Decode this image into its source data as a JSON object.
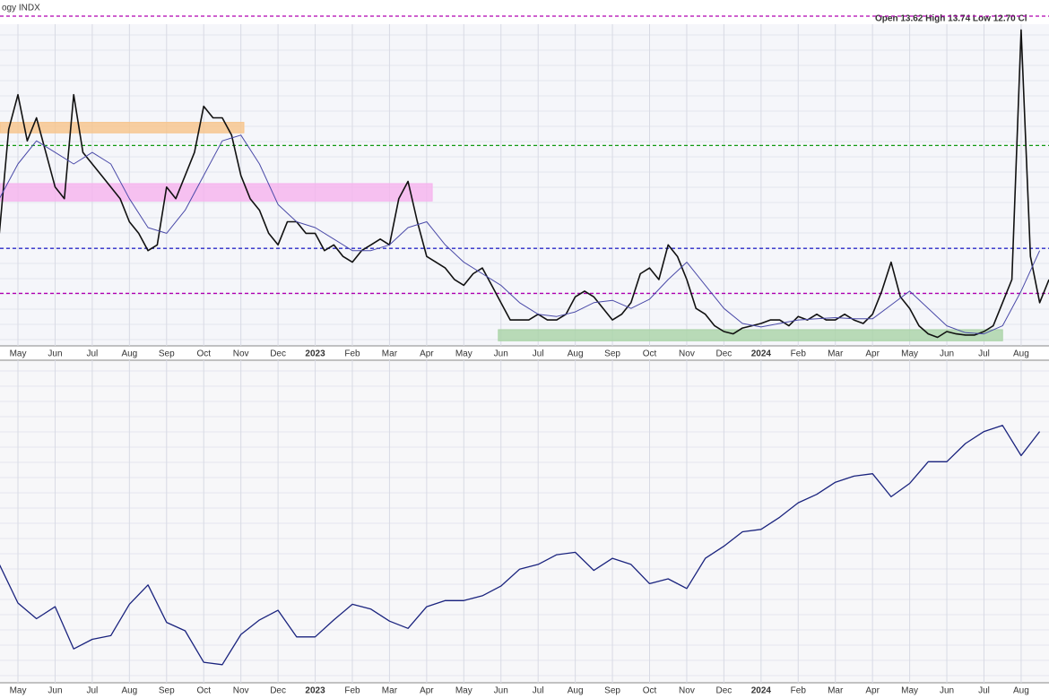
{
  "chart_data": [
    {
      "type": "line",
      "title": "ogy INDX",
      "quote": "Open 13.62 High 13.74 Low 12.70 Cl",
      "xlim": [
        -0.483,
        27.75
      ],
      "ylim": [
        11.26,
        39.1
      ],
      "xticks": [
        {
          "value": 0,
          "label": "May"
        },
        {
          "value": 1,
          "label": "Jun"
        },
        {
          "value": 2,
          "label": "Jul"
        },
        {
          "value": 3,
          "label": "Aug"
        },
        {
          "value": 4,
          "label": "Sep"
        },
        {
          "value": 5,
          "label": "Oct"
        },
        {
          "value": 6,
          "label": "Nov"
        },
        {
          "value": 7,
          "label": "Dec"
        },
        {
          "value": 8,
          "label": "2023"
        },
        {
          "value": 9,
          "label": "Feb"
        },
        {
          "value": 10,
          "label": "Mar"
        },
        {
          "value": 11,
          "label": "Apr"
        },
        {
          "value": 12,
          "label": "May"
        },
        {
          "value": 13,
          "label": "Jun"
        },
        {
          "value": 14,
          "label": "Jul"
        },
        {
          "value": 15,
          "label": "Aug"
        },
        {
          "value": 16,
          "label": "Sep"
        },
        {
          "value": 17,
          "label": "Oct"
        },
        {
          "value": 18,
          "label": "Nov"
        },
        {
          "value": 19,
          "label": "Dec"
        },
        {
          "value": 20,
          "label": "2024"
        },
        {
          "value": 21,
          "label": "Feb"
        },
        {
          "value": 22,
          "label": "Mar"
        },
        {
          "value": 23,
          "label": "Apr"
        },
        {
          "value": 24,
          "label": "May"
        },
        {
          "value": 25,
          "label": "Jun"
        },
        {
          "value": 26,
          "label": "Jul"
        },
        {
          "value": 27,
          "label": "Aug"
        }
      ],
      "grid": true,
      "reference_lines": [
        {
          "value": 39.8,
          "color": "#b000b0"
        },
        {
          "value": 28.6,
          "color": "#119911"
        },
        {
          "value": 19.7,
          "color": "#2a2ac8"
        },
        {
          "value": 15.8,
          "color": "#b000b0"
        }
      ],
      "zones": [
        {
          "x": [
            -0.483,
            6.08
          ],
          "y": [
            29.7,
            30.6
          ],
          "color": "#f7c48a"
        },
        {
          "x": [
            -0.483,
            11.15
          ],
          "y": [
            23.8,
            25.3
          ],
          "color": "#f6b3ee"
        },
        {
          "x": [
            12.93,
            26.5
          ],
          "y": [
            11.7,
            12.66
          ],
          "color": "#a9d3a6"
        }
      ],
      "series": [
        {
          "color": "#111111",
          "width": 1.6,
          "x": [
            -0.5,
            -0.25,
            0,
            0.25,
            0.5,
            0.75,
            1,
            1.25,
            1.5,
            1.75,
            2,
            2.25,
            2.5,
            2.75,
            3,
            3.25,
            3.5,
            3.75,
            4,
            4.25,
            4.5,
            4.75,
            5,
            5.25,
            5.5,
            5.75,
            6,
            6.25,
            6.5,
            6.75,
            7,
            7.25,
            7.5,
            7.75,
            8,
            8.25,
            8.5,
            8.75,
            9,
            9.25,
            9.5,
            9.75,
            10,
            10.25,
            10.5,
            10.75,
            11,
            11.25,
            11.5,
            11.75,
            12,
            12.25,
            12.5,
            12.75,
            13,
            13.25,
            13.5,
            13.75,
            14,
            14.25,
            14.5,
            14.75,
            15,
            15.25,
            15.5,
            15.75,
            16,
            16.25,
            16.5,
            16.75,
            17,
            17.25,
            17.5,
            17.75,
            18,
            18.25,
            18.5,
            18.75,
            19,
            19.25,
            19.5,
            19.75,
            20,
            20.25,
            20.5,
            20.75,
            21,
            21.25,
            21.5,
            21.75,
            22,
            22.25,
            22.5,
            22.75,
            23,
            23.25,
            23.5,
            23.75,
            24,
            24.25,
            24.5,
            24.75,
            25,
            25.25,
            25.5,
            25.75,
            26,
            26.25,
            26.5,
            26.75,
            27,
            27.25,
            27.5,
            27.75
          ],
          "values": [
            21,
            30,
            33,
            29,
            31,
            28,
            25,
            24,
            33,
            28,
            27,
            26,
            25,
            24,
            22,
            21,
            19.5,
            20,
            25,
            24,
            26,
            28,
            32,
            31,
            31,
            29.5,
            26,
            24,
            23,
            21,
            20,
            22,
            22,
            21,
            21,
            19.5,
            20,
            19,
            18.5,
            19.5,
            20,
            20.5,
            20,
            24,
            25.5,
            22,
            19,
            18.5,
            18,
            17,
            16.5,
            17.5,
            18,
            16.5,
            15,
            13.5,
            13.5,
            13.5,
            14,
            13.5,
            13.5,
            14,
            15.5,
            16,
            15.5,
            14.5,
            13.5,
            14,
            15,
            17.5,
            18,
            17,
            20,
            19,
            17,
            14.5,
            14,
            13,
            12.5,
            12.3,
            12.8,
            13,
            13.2,
            13.5,
            13.5,
            13,
            13.8,
            13.5,
            14,
            13.5,
            13.5,
            14,
            13.5,
            13.2,
            14,
            16,
            18.5,
            15.5,
            14.5,
            13,
            12.3,
            12,
            12.5,
            12.3,
            12.2,
            12.2,
            12.5,
            13,
            15,
            17,
            38.6,
            19,
            15,
            17
          ]
        },
        {
          "color": "#4a4aa8",
          "width": 1,
          "x": [
            -0.5,
            0,
            0.5,
            1,
            1.5,
            2,
            2.5,
            3,
            3.5,
            4,
            4.5,
            5,
            5.5,
            6,
            6.5,
            7,
            7.5,
            8,
            8.5,
            9,
            9.5,
            10,
            10.5,
            11,
            11.5,
            12,
            12.5,
            13,
            13.5,
            14,
            14.5,
            15,
            15.5,
            16,
            16.5,
            17,
            17.5,
            18,
            18.5,
            19,
            19.5,
            20,
            20.5,
            21,
            21.5,
            22,
            22.5,
            23,
            23.5,
            24,
            24.5,
            25,
            25.5,
            26,
            26.5,
            27,
            27.5
          ],
          "values": [
            24,
            27,
            29,
            28,
            27,
            28,
            27,
            24,
            21.5,
            21,
            23,
            26,
            29,
            29.5,
            27,
            23.5,
            22,
            21.5,
            20.5,
            19.5,
            19.5,
            20,
            21.5,
            22,
            20,
            18.5,
            17.5,
            16.5,
            15,
            14,
            13.8,
            14.2,
            15,
            15.2,
            14.5,
            15.3,
            17,
            18.5,
            16.5,
            14.5,
            13.2,
            12.9,
            13.2,
            13.5,
            13.6,
            13.7,
            13.6,
            13.6,
            14.8,
            16,
            14.5,
            13,
            12.4,
            12.3,
            13,
            16,
            19.5
          ]
        }
      ]
    },
    {
      "type": "line",
      "xlim": [
        -0.483,
        27.75
      ],
      "ylim": [
        3470,
        6140
      ],
      "xticks": [
        {
          "value": 0,
          "label": "May"
        },
        {
          "value": 1,
          "label": "Jun"
        },
        {
          "value": 2,
          "label": "Jul"
        },
        {
          "value": 3,
          "label": "Aug"
        },
        {
          "value": 4,
          "label": "Sep"
        },
        {
          "value": 5,
          "label": "Oct"
        },
        {
          "value": 6,
          "label": "Nov"
        },
        {
          "value": 7,
          "label": "Dec"
        },
        {
          "value": 8,
          "label": "2023"
        },
        {
          "value": 9,
          "label": "Feb"
        },
        {
          "value": 10,
          "label": "Mar"
        },
        {
          "value": 11,
          "label": "Apr"
        },
        {
          "value": 12,
          "label": "May"
        },
        {
          "value": 13,
          "label": "Jun"
        },
        {
          "value": 14,
          "label": "Jul"
        },
        {
          "value": 15,
          "label": "Aug"
        },
        {
          "value": 16,
          "label": "Sep"
        },
        {
          "value": 17,
          "label": "Oct"
        },
        {
          "value": 18,
          "label": "Nov"
        },
        {
          "value": 19,
          "label": "Dec"
        },
        {
          "value": 20,
          "label": "2024"
        },
        {
          "value": 21,
          "label": "Feb"
        },
        {
          "value": 22,
          "label": "Mar"
        },
        {
          "value": 23,
          "label": "Apr"
        },
        {
          "value": 24,
          "label": "May"
        },
        {
          "value": 25,
          "label": "Jun"
        },
        {
          "value": 26,
          "label": "Jul"
        },
        {
          "value": 27,
          "label": "Aug"
        }
      ],
      "grid": true,
      "series": [
        {
          "color": "#1a237e",
          "width": 1.3,
          "x": [
            -0.5,
            0,
            0.5,
            1,
            1.5,
            2,
            2.5,
            3,
            3.5,
            4,
            4.5,
            5,
            5.5,
            6,
            6.5,
            7,
            7.5,
            8,
            8.5,
            9,
            9.5,
            10,
            10.5,
            11,
            11.5,
            12,
            12.5,
            13,
            13.5,
            14,
            14.5,
            15,
            15.5,
            16,
            16.5,
            17,
            17.5,
            18,
            18.5,
            19,
            19.5,
            20,
            20.5,
            21,
            21.5,
            22,
            22.5,
            23,
            23.5,
            24,
            24.5,
            25,
            25.5,
            26,
            26.5,
            27,
            27.5
          ],
          "values": [
            4450,
            4130,
            4000,
            4100,
            3750,
            3830,
            3860,
            4120,
            4280,
            3970,
            3900,
            3640,
            3620,
            3870,
            3990,
            4070,
            3850,
            3850,
            3990,
            4120,
            4080,
            3980,
            3920,
            4100,
            4150,
            4150,
            4190,
            4270,
            4410,
            4450,
            4530,
            4550,
            4400,
            4500,
            4450,
            4290,
            4330,
            4250,
            4500,
            4600,
            4720,
            4740,
            4840,
            4960,
            5030,
            5130,
            5180,
            5200,
            5010,
            5120,
            5300,
            5300,
            5450,
            5550,
            5600,
            5350,
            5550
          ]
        }
      ]
    }
  ]
}
